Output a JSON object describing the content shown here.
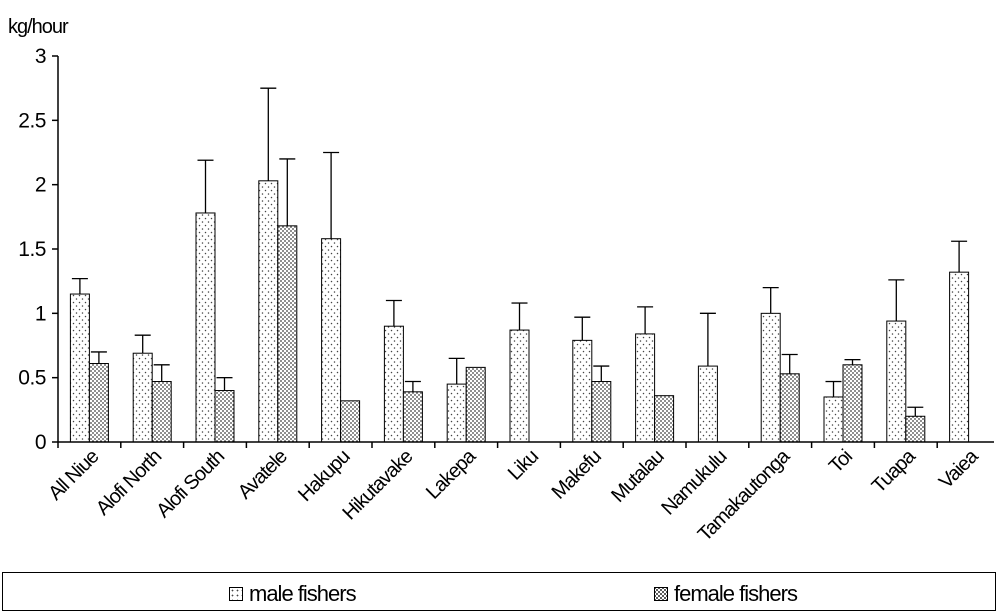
{
  "chart_data": {
    "type": "bar",
    "ylabel": "kg/hour",
    "ylim": [
      0,
      3
    ],
    "yticks": [
      "0",
      "0.5",
      "1",
      "1.5",
      "2",
      "2.5",
      "3"
    ],
    "ytick_values": [
      0,
      0.5,
      1,
      1.5,
      2,
      2.5,
      3
    ],
    "categories": [
      "All Niue",
      "Alofi North",
      "Alofi South",
      "Avatele",
      "Hakupu",
      "Hikutavake",
      "Lakepa",
      "Liku",
      "Makefu",
      "Mutalau",
      "Namukulu",
      "Tamakautonga",
      "Toi",
      "Tuapa",
      "Vaiea"
    ],
    "series": [
      {
        "name": "male fishers",
        "values": [
          1.15,
          0.69,
          1.78,
          2.03,
          1.58,
          0.9,
          0.45,
          0.87,
          0.79,
          0.84,
          0.59,
          1.0,
          0.35,
          0.94,
          1.32
        ],
        "error_upper": [
          1.27,
          0.83,
          2.19,
          2.75,
          2.25,
          1.1,
          0.65,
          1.08,
          0.97,
          1.05,
          1.0,
          1.2,
          0.47,
          1.26,
          1.56
        ]
      },
      {
        "name": "female fishers",
        "values": [
          0.61,
          0.47,
          0.4,
          1.68,
          0.32,
          0.39,
          0.58,
          0.0,
          0.47,
          0.36,
          0.0,
          0.53,
          0.6,
          0.2,
          null
        ],
        "error_upper": [
          0.7,
          0.6,
          0.5,
          2.2,
          null,
          0.47,
          null,
          null,
          0.59,
          null,
          null,
          0.68,
          0.64,
          0.27,
          null
        ]
      }
    ],
    "grid": false,
    "legend_position": "bottom"
  },
  "colors": {
    "axis": "#000000",
    "bar_fill": "#ffffff",
    "male_pattern_dot": "#444444",
    "female_pattern_dot": "#333333"
  },
  "legend": {
    "male_label": "male fishers",
    "female_label": "female fishers"
  }
}
